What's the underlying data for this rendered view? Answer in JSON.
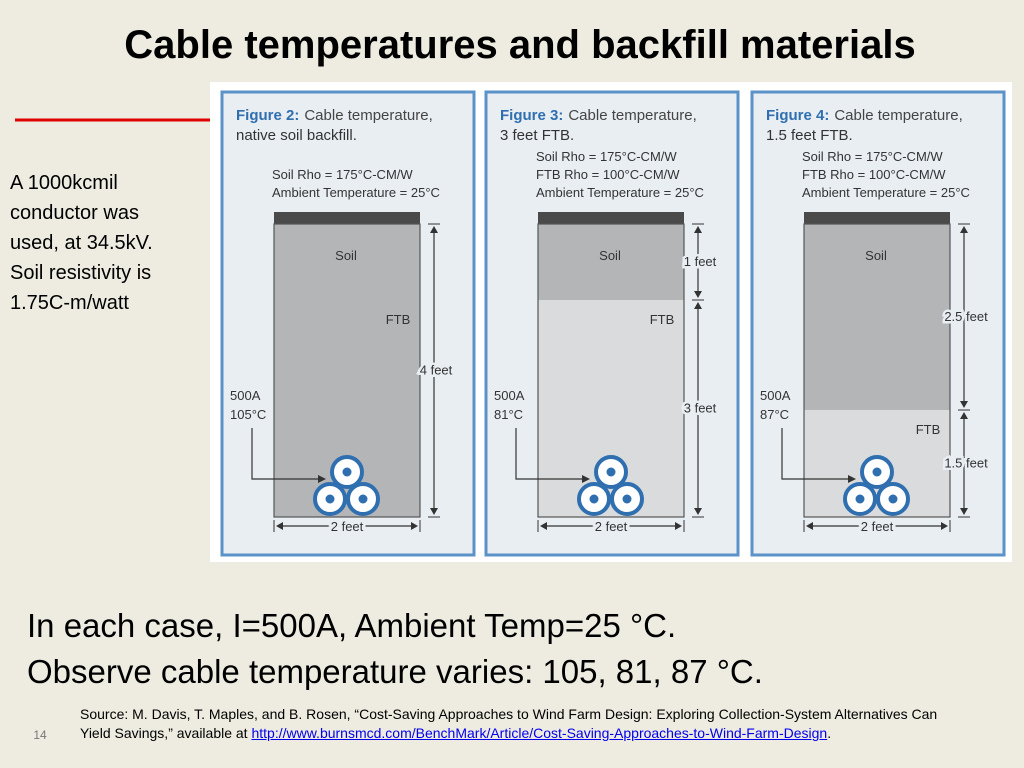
{
  "title": "Cable temperatures and backfill materials",
  "note": "A 1000kcmil conductor was used, at 34.5kV.  Soil resistivity is 1.75C-m/watt",
  "figures": [
    {
      "label": "Figure 2:",
      "caption": [
        "Cable temperature,",
        "native soil backfill."
      ],
      "params": [
        "Soil Rho = 175°C-CM/W",
        "Ambient Temperature = 25°C"
      ],
      "layer_labels": [
        "Soil",
        "FTB"
      ],
      "dimensions": [
        "4 feet"
      ],
      "current": "500A",
      "temperature": "105°C",
      "width": "2 feet"
    },
    {
      "label": "Figure 3:",
      "caption": [
        "Cable temperature,",
        "3 feet FTB."
      ],
      "params": [
        "Soil Rho = 175°C-CM/W",
        "FTB Rho = 100°C-CM/W",
        "Ambient Temperature = 25°C"
      ],
      "layer_labels": [
        "Soil",
        "FTB"
      ],
      "dimensions": [
        "1 feet",
        "3 feet"
      ],
      "current": "500A",
      "temperature": "81°C",
      "width": "2 feet"
    },
    {
      "label": "Figure 4:",
      "caption": [
        "Cable temperature,",
        "1.5 feet FTB."
      ],
      "params": [
        "Soil Rho = 175°C-CM/W",
        "FTB Rho = 100°C-CM/W",
        "Ambient Temperature = 25°C"
      ],
      "layer_labels": [
        "Soil",
        "FTB"
      ],
      "dimensions": [
        "2.5 feet",
        "1.5 feet"
      ],
      "current": "500A",
      "temperature": "87°C",
      "width": "2 feet"
    }
  ],
  "body": [
    "In each case, I=500A, Ambient Temp=25 °C.",
    "Observe cable temperature varies: 105, 81, 87 °C."
  ],
  "source": {
    "text": "Source: M. Davis, T. Maples, and B. Rosen, “Cost-Saving Approaches to Wind Farm Design: Exploring Collection-System Alternatives Can Yield Savings,” available at ",
    "link": "http://www.burnsmcd.com/BenchMark/Article/Cost-Saving-Approaches-to-Wind-Farm-Design",
    "end": "."
  },
  "page_number": "14"
}
